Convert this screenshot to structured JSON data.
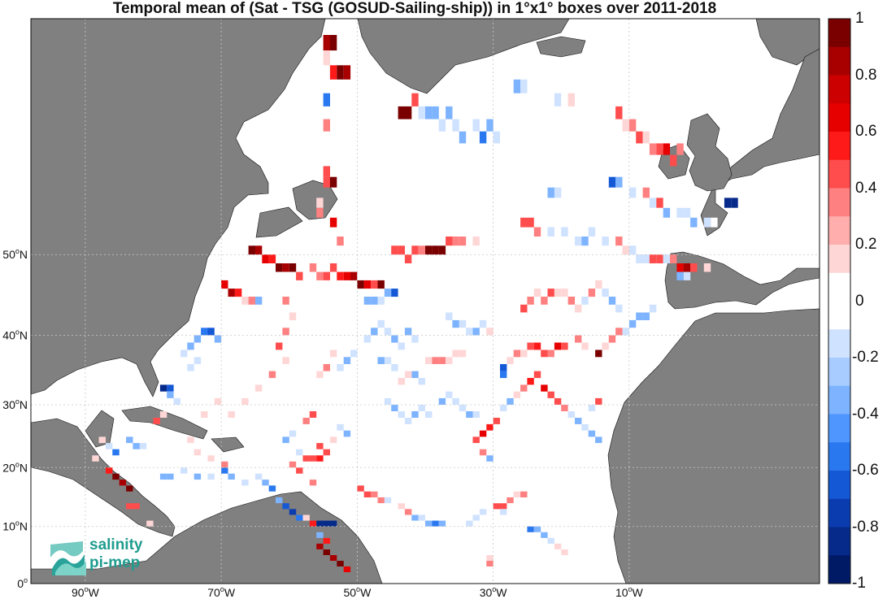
{
  "title": "Temporal mean of (Sat - TSG (GOSUD-Sailing-ship)) in 1°x1° boxes over 2011-2018",
  "map": {
    "lon_range": [
      -98,
      18
    ],
    "lat_range": [
      0,
      70
    ],
    "projection": "mercator",
    "land_color": "#808080",
    "ocean_color": "#ffffff",
    "grid": true,
    "lon_ticks": [
      {
        "value": -90,
        "deg": "90",
        "hemi": "W"
      },
      {
        "value": -70,
        "deg": "70",
        "hemi": "W"
      },
      {
        "value": -50,
        "deg": "50",
        "hemi": "W"
      },
      {
        "value": -30,
        "deg": "30",
        "hemi": "W"
      },
      {
        "value": -10,
        "deg": "10",
        "hemi": "W"
      }
    ],
    "lat_ticks": [
      {
        "value": 50,
        "deg": "50",
        "hemi": "N"
      },
      {
        "value": 40,
        "deg": "40",
        "hemi": "N"
      },
      {
        "value": 30,
        "deg": "30",
        "hemi": "N"
      },
      {
        "value": 20,
        "deg": "20",
        "hemi": "N"
      },
      {
        "value": 10,
        "deg": "10",
        "hemi": "N"
      },
      {
        "value": 0,
        "deg": "0",
        "hemi": ""
      }
    ]
  },
  "colorbar": {
    "labels": [
      "1",
      "0.8",
      "0.6",
      "0.4",
      "0.2",
      "0",
      "-0.2",
      "-0.4",
      "-0.6",
      "-0.8",
      "-1"
    ],
    "colors": [
      "#7a0000",
      "#a80000",
      "#cc0000",
      "#e60000",
      "#ff1a1a",
      "#ff4d4d",
      "#ff8080",
      "#ffadad",
      "#ffd6d6",
      "#ffffff",
      "#ffffff",
      "#cfe2ff",
      "#a8ccff",
      "#7db3ff",
      "#4f96ff",
      "#2a78f0",
      "#1458d6",
      "#0a3cb0",
      "#052a8a",
      "#001a66"
    ]
  },
  "logo": {
    "line1": "salinity",
    "line2": "pi-mep"
  },
  "cells": [
    [
      -55,
      68,
      8
    ],
    [
      -54,
      68,
      9
    ],
    [
      -55,
      67,
      2
    ],
    [
      -54,
      66,
      6
    ],
    [
      -53,
      66,
      9
    ],
    [
      -52,
      66,
      8
    ],
    [
      -51,
      67,
      1
    ],
    [
      -55,
      64,
      -5
    ],
    [
      -55,
      62,
      3
    ],
    [
      -44,
      63,
      10
    ],
    [
      -43,
      63,
      9
    ],
    [
      -42,
      64,
      4
    ],
    [
      -41,
      63,
      -2
    ],
    [
      -40,
      63,
      -3
    ],
    [
      -39,
      63,
      -4
    ],
    [
      -38,
      62,
      -2
    ],
    [
      -37,
      63,
      -3
    ],
    [
      -36,
      62,
      -2
    ],
    [
      -35,
      61,
      -3
    ],
    [
      -33,
      62,
      -2
    ],
    [
      -32,
      61,
      -5
    ],
    [
      -31,
      62,
      -4
    ],
    [
      -30,
      61,
      -2
    ],
    [
      -27,
      65,
      -3
    ],
    [
      -26,
      65,
      -2
    ],
    [
      -21,
      64,
      -2
    ],
    [
      -20,
      64,
      1
    ],
    [
      -19,
      64,
      2
    ],
    [
      -12,
      63,
      4
    ],
    [
      -11,
      62,
      2
    ],
    [
      -10,
      62,
      3
    ],
    [
      -9,
      61,
      4
    ],
    [
      -8,
      61,
      2
    ],
    [
      -7,
      60,
      3
    ],
    [
      -6,
      60,
      5
    ],
    [
      -5,
      60,
      7
    ],
    [
      -4,
      59,
      5
    ],
    [
      -3,
      60,
      3
    ],
    [
      -21,
      56,
      -2
    ],
    [
      -22,
      56,
      -3
    ],
    [
      -13,
      57,
      -6
    ],
    [
      -12,
      57,
      -3
    ],
    [
      -10,
      56,
      -2
    ],
    [
      -8,
      56,
      3
    ],
    [
      -7,
      55,
      -2
    ],
    [
      -6,
      55,
      5
    ],
    [
      -5,
      54,
      -3
    ],
    [
      -3,
      54,
      -2
    ],
    [
      -2,
      54,
      -2
    ],
    [
      -1,
      53,
      -3
    ],
    [
      1,
      53,
      -2
    ],
    [
      2,
      53,
      1
    ],
    [
      4,
      55,
      -9
    ],
    [
      5,
      55,
      -8
    ],
    [
      -26,
      53,
      5
    ],
    [
      -25,
      53,
      4
    ],
    [
      -24,
      52,
      3
    ],
    [
      -22,
      52,
      -2
    ],
    [
      -20,
      52,
      -2
    ],
    [
      -18,
      51,
      -2
    ],
    [
      -17,
      51,
      -3
    ],
    [
      -16,
      52,
      -2
    ],
    [
      -14,
      51,
      -2
    ],
    [
      -12,
      51,
      3
    ],
    [
      -11,
      50,
      2
    ],
    [
      -10,
      50,
      -2
    ],
    [
      -9,
      49,
      -2
    ],
    [
      -8,
      49,
      -2
    ],
    [
      -7,
      49,
      4
    ],
    [
      -6,
      49,
      5
    ],
    [
      -5,
      49,
      -2
    ],
    [
      -4,
      49,
      3
    ],
    [
      -3,
      48,
      7
    ],
    [
      -2,
      48,
      8
    ],
    [
      -1,
      48,
      5
    ],
    [
      1,
      48,
      2
    ],
    [
      -3,
      47,
      -3
    ],
    [
      -2,
      47,
      -2
    ],
    [
      -66,
      50,
      9
    ],
    [
      -65,
      50,
      8
    ],
    [
      -64,
      49,
      7
    ],
    [
      -63,
      49,
      6
    ],
    [
      -62,
      48,
      9
    ],
    [
      -61,
      48,
      8
    ],
    [
      -60,
      48,
      9
    ],
    [
      -59,
      47,
      4
    ],
    [
      -57,
      48,
      3
    ],
    [
      -56,
      47,
      3
    ],
    [
      -55,
      47,
      5
    ],
    [
      -54,
      48,
      4
    ],
    [
      -53,
      47,
      6
    ],
    [
      -52,
      47,
      7
    ],
    [
      -51,
      47,
      8
    ],
    [
      -50,
      46,
      9
    ],
    [
      -49,
      46,
      7
    ],
    [
      -48,
      46,
      5
    ],
    [
      -47,
      46,
      9
    ],
    [
      -46,
      45,
      -4
    ],
    [
      -45,
      45,
      -6
    ],
    [
      -47,
      44,
      -2
    ],
    [
      -48,
      44,
      -3
    ],
    [
      -49,
      44,
      -3
    ],
    [
      -45,
      50,
      5
    ],
    [
      -44,
      50,
      4
    ],
    [
      -43,
      49,
      5
    ],
    [
      -42,
      50,
      5
    ],
    [
      -41,
      50,
      3
    ],
    [
      -40,
      50,
      10
    ],
    [
      -39,
      50,
      9
    ],
    [
      -38,
      50,
      9
    ],
    [
      -37,
      51,
      4
    ],
    [
      -36,
      51,
      3
    ],
    [
      -35,
      51,
      3
    ],
    [
      -33,
      51,
      2
    ],
    [
      -70,
      46,
      7
    ],
    [
      -69,
      45,
      8
    ],
    [
      -68,
      45,
      6
    ],
    [
      -67,
      44,
      2
    ],
    [
      -66,
      44,
      3
    ],
    [
      -65,
      44,
      -3
    ],
    [
      -73,
      40,
      -5
    ],
    [
      -72,
      40,
      -6
    ],
    [
      -71,
      39,
      -3
    ],
    [
      -74,
      39,
      -4
    ],
    [
      -75,
      38,
      -3
    ],
    [
      -76,
      37,
      -2
    ],
    [
      -74,
      36,
      -2
    ],
    [
      -75,
      35,
      -2
    ],
    [
      -79,
      32,
      -9
    ],
    [
      -78,
      32,
      -6
    ],
    [
      -78,
      31,
      -4
    ],
    [
      -77,
      30,
      -2
    ],
    [
      -79,
      28,
      2
    ],
    [
      -80,
      27,
      5
    ],
    [
      -81,
      25,
      1
    ],
    [
      -82,
      23,
      -2
    ],
    [
      -83,
      23,
      -4
    ],
    [
      -84,
      24,
      -3
    ],
    [
      -86,
      22,
      -5
    ],
    [
      -87,
      23,
      -2
    ],
    [
      -88,
      24,
      2
    ],
    [
      -86,
      18,
      9
    ],
    [
      -85,
      17,
      8
    ],
    [
      -84,
      16,
      10
    ],
    [
      -87,
      19,
      6
    ],
    [
      -89,
      21,
      2
    ],
    [
      -84,
      13,
      4
    ],
    [
      -83,
      13,
      5
    ],
    [
      -81,
      10,
      2
    ],
    [
      -79,
      18,
      -3
    ],
    [
      -78,
      18,
      -4
    ],
    [
      -76,
      19,
      -2
    ],
    [
      -74,
      18,
      -3
    ],
    [
      -72,
      18,
      -2
    ],
    [
      -70,
      19,
      -5
    ],
    [
      -69,
      18,
      -3
    ],
    [
      -67,
      17,
      -2
    ],
    [
      -65,
      18,
      -2
    ],
    [
      -64,
      17,
      -3
    ],
    [
      -63,
      16,
      -5
    ],
    [
      -62,
      14,
      -3
    ],
    [
      -61,
      13,
      -6
    ],
    [
      -60,
      12,
      -7
    ],
    [
      -59,
      11,
      -5
    ],
    [
      -58,
      11,
      2
    ],
    [
      -57,
      10,
      6
    ],
    [
      -56,
      10,
      -9
    ],
    [
      -55,
      10,
      -9
    ],
    [
      -54,
      10,
      -8
    ],
    [
      -56,
      8,
      -4
    ],
    [
      -55,
      7,
      6
    ],
    [
      -56,
      6,
      8
    ],
    [
      -55,
      5,
      10
    ],
    [
      -54,
      4,
      8
    ],
    [
      -53,
      3,
      9
    ],
    [
      -52,
      2,
      7
    ],
    [
      -58,
      21,
      4
    ],
    [
      -57,
      21,
      5
    ],
    [
      -56,
      21,
      6
    ],
    [
      -55,
      22,
      5
    ],
    [
      -56,
      23,
      4
    ],
    [
      -54,
      24,
      2
    ],
    [
      -52,
      25,
      -3
    ],
    [
      -53,
      26,
      -2
    ],
    [
      -57,
      28,
      4
    ],
    [
      -58,
      27,
      3
    ],
    [
      -60,
      25,
      -2
    ],
    [
      -61,
      24,
      -3
    ],
    [
      -59,
      22,
      -2
    ],
    [
      -60,
      20,
      3
    ],
    [
      -59,
      19,
      4
    ],
    [
      -57,
      17,
      3
    ],
    [
      -50,
      16,
      5
    ],
    [
      -49,
      15,
      4
    ],
    [
      -48,
      15,
      3
    ],
    [
      -47,
      14,
      3
    ],
    [
      -46,
      14,
      -2
    ],
    [
      -44,
      13,
      2
    ],
    [
      -43,
      12,
      3
    ],
    [
      -42,
      11,
      -3
    ],
    [
      -41,
      11,
      -2
    ],
    [
      -40,
      10,
      -4
    ],
    [
      -39,
      10,
      -5
    ],
    [
      -38,
      10,
      -3
    ],
    [
      -34,
      10,
      -2
    ],
    [
      -33,
      11,
      -2
    ],
    [
      -32,
      12,
      -2
    ],
    [
      -30,
      13,
      4
    ],
    [
      -29,
      13,
      5
    ],
    [
      -29,
      12,
      -2
    ],
    [
      -28,
      14,
      3
    ],
    [
      -27,
      15,
      2
    ],
    [
      -26,
      15,
      3
    ],
    [
      -25,
      9,
      -5
    ],
    [
      -24,
      9,
      -4
    ],
    [
      -23,
      8,
      -3
    ],
    [
      -22,
      7,
      -2
    ],
    [
      -21,
      6,
      2
    ],
    [
      -20,
      5,
      2
    ],
    [
      -31,
      3,
      3
    ],
    [
      -31,
      4,
      2
    ],
    [
      -31,
      21,
      -3
    ],
    [
      -32,
      22,
      3
    ],
    [
      -33,
      24,
      4
    ],
    [
      -32,
      25,
      7
    ],
    [
      -31,
      26,
      6
    ],
    [
      -30,
      27,
      5
    ],
    [
      -29,
      29,
      -2
    ],
    [
      -28,
      30,
      -3
    ],
    [
      -27,
      31,
      2
    ],
    [
      -26,
      32,
      3
    ],
    [
      -25,
      33,
      6
    ],
    [
      -24,
      34,
      4
    ],
    [
      -23,
      32,
      7
    ],
    [
      -22,
      31,
      5
    ],
    [
      -21,
      30,
      4
    ],
    [
      -20,
      29,
      3
    ],
    [
      -19,
      28,
      -2
    ],
    [
      -18,
      27,
      -3
    ],
    [
      -17,
      26,
      -2
    ],
    [
      -16,
      25,
      -4
    ],
    [
      -15,
      24,
      -3
    ],
    [
      -16,
      29,
      -2
    ],
    [
      -15,
      30,
      4
    ],
    [
      -29,
      34,
      -5
    ],
    [
      -29,
      35,
      -6
    ],
    [
      -28,
      36,
      2
    ],
    [
      -27,
      37,
      3
    ],
    [
      -26,
      37,
      2
    ],
    [
      -25,
      38,
      5
    ],
    [
      -24,
      38,
      6
    ],
    [
      -23,
      37,
      4
    ],
    [
      -22,
      37,
      3
    ],
    [
      -21,
      38,
      7
    ],
    [
      -20,
      38,
      5
    ],
    [
      -18,
      39,
      3
    ],
    [
      -17,
      38,
      2
    ],
    [
      -15,
      37,
      9
    ],
    [
      -14,
      38,
      2
    ],
    [
      -13,
      39,
      3
    ],
    [
      -12,
      40,
      3
    ],
    [
      -11,
      40,
      -2
    ],
    [
      -10,
      41,
      -3
    ],
    [
      -9,
      42,
      -3
    ],
    [
      -8,
      42,
      -4
    ],
    [
      -7,
      43,
      -2
    ],
    [
      -26,
      43,
      4
    ],
    [
      -25,
      44,
      3
    ],
    [
      -24,
      45,
      2
    ],
    [
      -23,
      44,
      3
    ],
    [
      -22,
      45,
      4
    ],
    [
      -21,
      45,
      2
    ],
    [
      -20,
      45,
      2
    ],
    [
      -19,
      44,
      3
    ],
    [
      -18,
      43,
      2
    ],
    [
      -17,
      44,
      -2
    ],
    [
      -16,
      45,
      3
    ],
    [
      -15,
      46,
      2
    ],
    [
      -14,
      45,
      -2
    ],
    [
      -13,
      44,
      -3
    ],
    [
      -12,
      43,
      -2
    ],
    [
      -37,
      42,
      -2
    ],
    [
      -36,
      41,
      -3
    ],
    [
      -35,
      41,
      -2
    ],
    [
      -34,
      40,
      -2
    ],
    [
      -33,
      40,
      -3
    ],
    [
      -32,
      41,
      -2
    ],
    [
      -31,
      40,
      2
    ],
    [
      -40,
      36,
      2
    ],
    [
      -39,
      36,
      3
    ],
    [
      -38,
      36,
      3
    ],
    [
      -37,
      36,
      2
    ],
    [
      -36,
      37,
      2
    ],
    [
      -35,
      37,
      2
    ],
    [
      -41,
      33,
      -2
    ],
    [
      -42,
      34,
      -3
    ],
    [
      -43,
      34,
      2
    ],
    [
      -44,
      33,
      2
    ],
    [
      -45,
      35,
      -2
    ],
    [
      -46,
      36,
      -2
    ],
    [
      -47,
      36,
      -3
    ],
    [
      -46,
      30,
      -2
    ],
    [
      -45,
      29,
      -3
    ],
    [
      -44,
      28,
      -2
    ],
    [
      -43,
      27,
      -2
    ],
    [
      -42,
      28,
      -3
    ],
    [
      -41,
      29,
      -2
    ],
    [
      -40,
      28,
      -2
    ],
    [
      -38,
      30,
      -3
    ],
    [
      -37,
      31,
      -2
    ],
    [
      -36,
      30,
      -2
    ],
    [
      -35,
      29,
      -2
    ],
    [
      -34,
      28,
      -3
    ],
    [
      -33,
      28,
      -2
    ],
    [
      -49,
      39,
      -2
    ],
    [
      -48,
      40,
      -3
    ],
    [
      -47,
      41,
      -2
    ],
    [
      -46,
      40,
      -2
    ],
    [
      -45,
      39,
      -3
    ],
    [
      -44,
      38,
      -2
    ],
    [
      -43,
      40,
      -3
    ],
    [
      -42,
      39,
      -2
    ],
    [
      -51,
      37,
      -2
    ],
    [
      -52,
      36,
      -3
    ],
    [
      -53,
      35,
      -2
    ],
    [
      -54,
      37,
      2
    ],
    [
      -55,
      35,
      3
    ],
    [
      -56,
      34,
      2
    ],
    [
      -61,
      44,
      3
    ],
    [
      -60,
      42,
      2
    ],
    [
      -61,
      40,
      3
    ],
    [
      -62,
      38,
      4
    ],
    [
      -61,
      36,
      2
    ],
    [
      -63,
      34,
      3
    ],
    [
      -65,
      32,
      2
    ],
    [
      -67,
      30,
      2
    ],
    [
      -69,
      28,
      2
    ],
    [
      -71,
      30,
      2
    ],
    [
      -73,
      28,
      2
    ],
    [
      -75,
      24,
      2
    ],
    [
      -74,
      22,
      2
    ],
    [
      -72,
      21,
      2
    ],
    [
      -70,
      20,
      3
    ],
    [
      -55,
      57,
      5
    ],
    [
      -55,
      58,
      4
    ],
    [
      -54,
      57,
      9
    ],
    [
      -56,
      55,
      2
    ],
    [
      -56,
      54,
      3
    ],
    [
      -54,
      53,
      7
    ],
    [
      -53,
      51,
      3
    ]
  ]
}
